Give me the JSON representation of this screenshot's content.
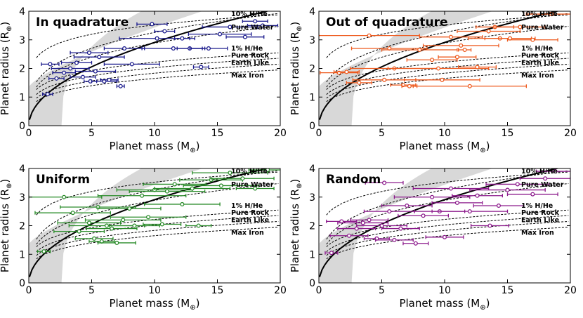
{
  "figure": {
    "xlabel": "Planet mass (M",
    "xlabel_sub": "⊕",
    "xlabel_close": ")",
    "ylabel": "Planet radius (R",
    "ylabel_sub": "⊕",
    "ylabel_close": ")",
    "curve_labels": [
      "10% H/He",
      "Pure Water",
      "1% H/He",
      "Pure Rock",
      "Earth Like",
      "Max Iron"
    ]
  },
  "chart_data": [
    {
      "type": "scatter",
      "title": "In quadrature",
      "color": "#1a1a8c",
      "xlim": [
        0,
        20
      ],
      "ylim": [
        0,
        4
      ],
      "xticks": [
        0,
        5,
        10,
        15,
        20
      ],
      "yticks": [
        0,
        1,
        2,
        3,
        4
      ],
      "points": [
        {
          "x": 1.5,
          "y": 1.1,
          "xerr": 0.4
        },
        {
          "x": 1.7,
          "y": 2.15,
          "xerr": 0.7
        },
        {
          "x": 2.2,
          "y": 1.65,
          "xerr": 0.6
        },
        {
          "x": 2.8,
          "y": 1.85,
          "xerr": 0.9
        },
        {
          "x": 3.3,
          "y": 2.0,
          "xerr": 1.5
        },
        {
          "x": 3.8,
          "y": 2.2,
          "xerr": 1.2
        },
        {
          "x": 4.3,
          "y": 1.7,
          "xerr": 1.0
        },
        {
          "x": 4.8,
          "y": 2.55,
          "xerr": 1.5
        },
        {
          "x": 4.9,
          "y": 1.55,
          "xerr": 0.5
        },
        {
          "x": 5.3,
          "y": 1.9,
          "xerr": 1.6
        },
        {
          "x": 5.6,
          "y": 2.4,
          "xerr": 2.0
        },
        {
          "x": 6.0,
          "y": 1.55,
          "xerr": 1.0
        },
        {
          "x": 6.4,
          "y": 1.6,
          "xerr": 0.7
        },
        {
          "x": 7.3,
          "y": 1.38,
          "xerr": 0.3
        },
        {
          "x": 7.6,
          "y": 2.7,
          "xerr": 1.6
        },
        {
          "x": 8.2,
          "y": 2.15,
          "xerr": 2.2
        },
        {
          "x": 9.8,
          "y": 3.55,
          "xerr": 1.2
        },
        {
          "x": 10.2,
          "y": 3.05,
          "xerr": 3.0
        },
        {
          "x": 10.8,
          "y": 3.3,
          "xerr": 0.8
        },
        {
          "x": 11.5,
          "y": 2.7,
          "xerr": 2.5
        },
        {
          "x": 12.2,
          "y": 3.05,
          "xerr": 0.6
        },
        {
          "x": 12.8,
          "y": 2.7,
          "xerr": 1.0
        },
        {
          "x": 13.7,
          "y": 2.05,
          "xerr": 0.6
        },
        {
          "x": 14.3,
          "y": 2.7,
          "xerr": 1.5
        },
        {
          "x": 15.2,
          "y": 3.2,
          "xerr": 2.5
        },
        {
          "x": 16.0,
          "y": 3.45,
          "xerr": 2.2
        },
        {
          "x": 17.2,
          "y": 3.1,
          "xerr": 1.5
        },
        {
          "x": 18.0,
          "y": 3.65,
          "xerr": 1.0
        },
        {
          "x": 18.6,
          "y": 3.5,
          "xerr": 1.2
        }
      ]
    },
    {
      "type": "scatter",
      "title": "Out of quadrature",
      "color": "#ee5a1e",
      "xlim": [
        0,
        20
      ],
      "ylim": [
        0,
        4
      ],
      "xticks": [
        0,
        5,
        10,
        15,
        20
      ],
      "yticks": [
        0,
        1,
        2,
        3,
        4
      ],
      "points": [
        {
          "x": 1.6,
          "y": 1.85,
          "xerr": 1.5
        },
        {
          "x": 2.2,
          "y": 1.88,
          "xerr": 1.0
        },
        {
          "x": 3.2,
          "y": 1.5,
          "xerr": 1.0
        },
        {
          "x": 4.0,
          "y": 3.15,
          "xerr": 4.0
        },
        {
          "x": 5.2,
          "y": 1.6,
          "xerr": 2.5
        },
        {
          "x": 5.6,
          "y": 2.7,
          "xerr": 3.0
        },
        {
          "x": 6.0,
          "y": 2.0,
          "xerr": 3.5
        },
        {
          "x": 6.7,
          "y": 1.42,
          "xerr": 1.0
        },
        {
          "x": 7.2,
          "y": 1.38,
          "xerr": 0.6
        },
        {
          "x": 8.0,
          "y": 2.65,
          "xerr": 3.0
        },
        {
          "x": 9.0,
          "y": 2.3,
          "xerr": 2.0
        },
        {
          "x": 9.5,
          "y": 2.0,
          "xerr": 4.0
        },
        {
          "x": 9.8,
          "y": 1.6,
          "xerr": 3.0
        },
        {
          "x": 10.5,
          "y": 3.1,
          "xerr": 2.5
        },
        {
          "x": 11.0,
          "y": 2.4,
          "xerr": 1.5
        },
        {
          "x": 11.3,
          "y": 2.8,
          "xerr": 3.0
        },
        {
          "x": 11.6,
          "y": 2.65,
          "xerr": 0.5
        },
        {
          "x": 12.0,
          "y": 1.38,
          "xerr": 4.5
        },
        {
          "x": 12.6,
          "y": 2.05,
          "xerr": 1.5
        },
        {
          "x": 13.5,
          "y": 3.3,
          "xerr": 2.5
        },
        {
          "x": 14.0,
          "y": 3.45,
          "xerr": 1.5
        },
        {
          "x": 14.4,
          "y": 3.05,
          "xerr": 2.5
        },
        {
          "x": 15.2,
          "y": 3.05,
          "xerr": 2.0
        },
        {
          "x": 16.0,
          "y": 3.45,
          "xerr": 2.0
        },
        {
          "x": 17.0,
          "y": 3.0,
          "xerr": 2.0
        },
        {
          "x": 18.5,
          "y": 3.9,
          "xerr": 2.0
        }
      ]
    },
    {
      "type": "scatter",
      "title": "Uniform",
      "color": "#2a8c2a",
      "xlim": [
        0,
        20
      ],
      "ylim": [
        0,
        4
      ],
      "xticks": [
        0,
        5,
        10,
        15,
        20
      ],
      "yticks": [
        0,
        1,
        2,
        3,
        4
      ],
      "points": [
        {
          "x": 1.2,
          "y": 1.1,
          "xerr": 0.5
        },
        {
          "x": 2.8,
          "y": 3.0,
          "xerr": 3.0
        },
        {
          "x": 3.5,
          "y": 2.45,
          "xerr": 3.0
        },
        {
          "x": 4.0,
          "y": 1.8,
          "xerr": 2.0
        },
        {
          "x": 4.8,
          "y": 2.1,
          "xerr": 2.5
        },
        {
          "x": 5.2,
          "y": 1.55,
          "xerr": 1.5
        },
        {
          "x": 5.5,
          "y": 2.65,
          "xerr": 3.0
        },
        {
          "x": 5.8,
          "y": 1.45,
          "xerr": 1.0
        },
        {
          "x": 6.2,
          "y": 2.0,
          "xerr": 3.0
        },
        {
          "x": 6.6,
          "y": 1.9,
          "xerr": 2.0
        },
        {
          "x": 7.0,
          "y": 1.4,
          "xerr": 1.5
        },
        {
          "x": 7.5,
          "y": 2.2,
          "xerr": 3.0
        },
        {
          "x": 8.0,
          "y": 2.6,
          "xerr": 2.5
        },
        {
          "x": 8.4,
          "y": 2.0,
          "xerr": 2.0
        },
        {
          "x": 9.0,
          "y": 3.05,
          "xerr": 3.5
        },
        {
          "x": 9.5,
          "y": 2.3,
          "xerr": 3.0
        },
        {
          "x": 10.0,
          "y": 3.25,
          "xerr": 3.0
        },
        {
          "x": 10.6,
          "y": 2.05,
          "xerr": 1.5
        },
        {
          "x": 11.0,
          "y": 3.2,
          "xerr": 3.0
        },
        {
          "x": 11.6,
          "y": 3.45,
          "xerr": 2.5
        },
        {
          "x": 12.2,
          "y": 2.75,
          "xerr": 3.0
        },
        {
          "x": 13.0,
          "y": 3.3,
          "xerr": 3.0
        },
        {
          "x": 13.5,
          "y": 2.0,
          "xerr": 1.0
        },
        {
          "x": 14.5,
          "y": 3.6,
          "xerr": 2.5
        },
        {
          "x": 15.3,
          "y": 3.4,
          "xerr": 3.0
        },
        {
          "x": 16.0,
          "y": 3.85,
          "xerr": 3.0
        },
        {
          "x": 17.0,
          "y": 3.65,
          "xerr": 2.5
        },
        {
          "x": 18.0,
          "y": 3.3,
          "xerr": 1.5
        },
        {
          "x": 19.0,
          "y": 3.95,
          "xerr": 1.5
        }
      ]
    },
    {
      "type": "scatter",
      "title": "Random",
      "color": "#8c1a8c",
      "xlim": [
        0,
        20
      ],
      "ylim": [
        0,
        4
      ],
      "xticks": [
        0,
        5,
        10,
        15,
        20
      ],
      "yticks": [
        0,
        1,
        2,
        3,
        4
      ],
      "points": [
        {
          "x": 1.0,
          "y": 1.05,
          "xerr": 0.5
        },
        {
          "x": 1.8,
          "y": 2.15,
          "xerr": 1.2
        },
        {
          "x": 2.4,
          "y": 1.65,
          "xerr": 1.5
        },
        {
          "x": 3.0,
          "y": 1.9,
          "xerr": 1.5
        },
        {
          "x": 3.5,
          "y": 2.1,
          "xerr": 2.0
        },
        {
          "x": 4.0,
          "y": 2.2,
          "xerr": 1.5
        },
        {
          "x": 4.6,
          "y": 1.55,
          "xerr": 1.0
        },
        {
          "x": 5.0,
          "y": 2.0,
          "xerr": 2.0
        },
        {
          "x": 5.2,
          "y": 3.5,
          "xerr": 1.5
        },
        {
          "x": 5.6,
          "y": 2.5,
          "xerr": 2.0
        },
        {
          "x": 6.0,
          "y": 1.5,
          "xerr": 1.5
        },
        {
          "x": 6.5,
          "y": 1.9,
          "xerr": 1.5
        },
        {
          "x": 7.0,
          "y": 2.7,
          "xerr": 2.0
        },
        {
          "x": 7.7,
          "y": 1.38,
          "xerr": 1.0
        },
        {
          "x": 8.3,
          "y": 2.35,
          "xerr": 2.0
        },
        {
          "x": 9.0,
          "y": 3.0,
          "xerr": 3.0
        },
        {
          "x": 9.6,
          "y": 2.5,
          "xerr": 2.0
        },
        {
          "x": 10.0,
          "y": 1.6,
          "xerr": 1.5
        },
        {
          "x": 10.5,
          "y": 3.3,
          "xerr": 3.0
        },
        {
          "x": 11.0,
          "y": 2.8,
          "xerr": 2.0
        },
        {
          "x": 12.0,
          "y": 2.5,
          "xerr": 3.0
        },
        {
          "x": 12.6,
          "y": 3.05,
          "xerr": 2.0
        },
        {
          "x": 13.6,
          "y": 2.0,
          "xerr": 1.5
        },
        {
          "x": 14.3,
          "y": 2.7,
          "xerr": 2.0
        },
        {
          "x": 15.0,
          "y": 3.25,
          "xerr": 3.0
        },
        {
          "x": 15.8,
          "y": 3.45,
          "xerr": 2.5
        },
        {
          "x": 17.0,
          "y": 3.1,
          "xerr": 2.0
        },
        {
          "x": 18.0,
          "y": 3.65,
          "xerr": 2.0
        },
        {
          "x": 18.8,
          "y": 3.9,
          "xerr": 1.5
        }
      ]
    }
  ]
}
